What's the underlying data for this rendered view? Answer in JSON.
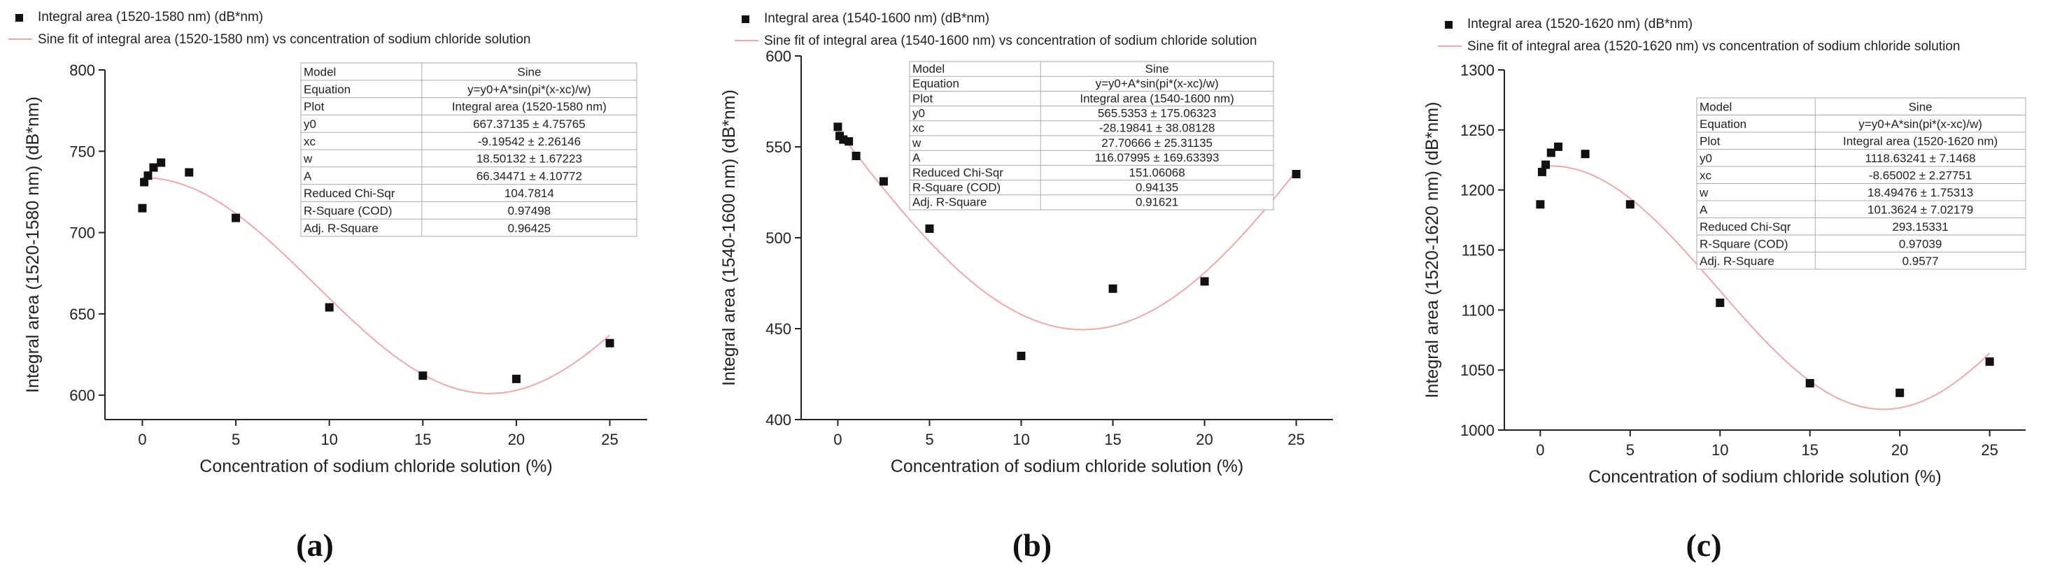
{
  "chart_data": [
    {
      "type": "scatter",
      "caption": "(a)",
      "xlabel": "Concentration of sodium chloride solution (%)",
      "ylabel": "Integral area (1520-1580 nm) (dB*nm)",
      "xlim": [
        -2,
        27
      ],
      "ylim": [
        585,
        800
      ],
      "xticks": [
        0,
        5,
        10,
        15,
        20,
        25
      ],
      "yticks": [
        600,
        650,
        700,
        750,
        800
      ],
      "legend": [
        "Integral area (1520-1580 nm) (dB*nm)",
        "Sine fit of integral area (1520-1580 nm) vs concentration of sodium chloride solution"
      ],
      "points": [
        [
          0,
          715
        ],
        [
          0.1,
          731
        ],
        [
          0.3,
          735
        ],
        [
          0.6,
          740
        ],
        [
          1.0,
          743
        ],
        [
          2.5,
          737
        ],
        [
          5,
          709
        ],
        [
          10,
          654
        ],
        [
          15,
          612
        ],
        [
          20,
          610
        ],
        [
          25,
          632
        ]
      ],
      "fit": {
        "y0": 667.37135,
        "xc": -9.19542,
        "w": 18.50132,
        "A": 66.34471
      },
      "fit_table": [
        [
          "Model",
          "Sine"
        ],
        [
          "Equation",
          "y=y0+A*sin(pi*(x-xc)/w)"
        ],
        [
          "Plot",
          "Integral area (1520-1580 nm)"
        ],
        [
          "y0",
          "667.37135 ± 4.75765"
        ],
        [
          "xc",
          "-9.19542 ± 2.26146"
        ],
        [
          "w",
          "18.50132 ± 1.67223"
        ],
        [
          "A",
          "66.34471 ± 4.10772"
        ],
        [
          "Reduced Chi-Sqr",
          "104.7814"
        ],
        [
          "R-Square (COD)",
          "0.97498"
        ],
        [
          "Adj. R-Square",
          "0.96425"
        ]
      ]
    },
    {
      "type": "scatter",
      "caption": "(b)",
      "xlabel": "Concentration of sodium chloride solution (%)",
      "ylabel": "Integral area (1540-1600 nm) (dB*nm)",
      "xlim": [
        -2,
        27
      ],
      "ylim": [
        400,
        600
      ],
      "xticks": [
        0,
        5,
        10,
        15,
        20,
        25
      ],
      "yticks": [
        400,
        450,
        500,
        550,
        600
      ],
      "legend": [
        "Integral area (1540-1600 nm) (dB*nm)",
        "Sine fit of integral area (1540-1600 nm) vs concentration of sodium chloride solution"
      ],
      "points": [
        [
          0,
          561
        ],
        [
          0.1,
          556
        ],
        [
          0.3,
          554
        ],
        [
          0.6,
          553
        ],
        [
          1.0,
          545
        ],
        [
          2.5,
          531
        ],
        [
          5,
          505
        ],
        [
          10,
          435
        ],
        [
          15,
          472
        ],
        [
          20,
          476
        ],
        [
          25,
          535
        ]
      ],
      "fit": {
        "y0": 565.5353,
        "xc": -28.19841,
        "w": 27.70666,
        "A": 116.07995
      },
      "fit_table": [
        [
          "Model",
          "Sine"
        ],
        [
          "Equation",
          "y=y0+A*sin(pi*(x-xc)/w)"
        ],
        [
          "Plot",
          "Integral area (1540-1600 nm)"
        ],
        [
          "y0",
          "565.5353 ± 175.06323"
        ],
        [
          "xc",
          "-28.19841 ± 38.08128"
        ],
        [
          "w",
          "27.70666 ± 25.31135"
        ],
        [
          "A",
          "116.07995 ± 169.63393"
        ],
        [
          "Reduced Chi-Sqr",
          "151.06068"
        ],
        [
          "R-Square (COD)",
          "0.94135"
        ],
        [
          "Adj. R-Square",
          "0.91621"
        ]
      ]
    },
    {
      "type": "scatter",
      "caption": "(c)",
      "xlabel": "Concentration of sodium chloride solution (%)",
      "ylabel": "Integral area (1520-1620 nm) (dB*nm)",
      "xlim": [
        -2,
        27
      ],
      "ylim": [
        1000,
        1300
      ],
      "xticks": [
        0,
        5,
        10,
        15,
        20,
        25
      ],
      "yticks": [
        1000,
        1050,
        1100,
        1150,
        1200,
        1250,
        1300
      ],
      "legend": [
        "Integral area (1520-1620 nm) (dB*nm)",
        "Sine fit of integral area (1520-1620 nm) vs concentration of sodium chloride solution"
      ],
      "points": [
        [
          0,
          1188
        ],
        [
          0.1,
          1215
        ],
        [
          0.3,
          1221
        ],
        [
          0.6,
          1231
        ],
        [
          1.0,
          1236
        ],
        [
          2.5,
          1230
        ],
        [
          5,
          1188
        ],
        [
          10,
          1106
        ],
        [
          15,
          1039
        ],
        [
          20,
          1031
        ],
        [
          25,
          1057
        ]
      ],
      "fit": {
        "y0": 1118.63241,
        "xc": -8.65002,
        "w": 18.49476,
        "A": 101.3624
      },
      "fit_table": [
        [
          "Model",
          "Sine"
        ],
        [
          "Equation",
          "y=y0+A*sin(pi*(x-xc)/w)"
        ],
        [
          "Plot",
          "Integral area (1520-1620 nm)"
        ],
        [
          "y0",
          "1118.63241 ± 7.1468"
        ],
        [
          "xc",
          "-8.65002 ± 2.27751"
        ],
        [
          "w",
          "18.49476 ± 1.75313"
        ],
        [
          "A",
          "101.3624 ± 7.02179"
        ],
        [
          "Reduced Chi-Sqr",
          "293.15331"
        ],
        [
          "R-Square (COD)",
          "0.97039"
        ],
        [
          "Adj. R-Square",
          "0.9577"
        ]
      ]
    }
  ],
  "colors": {
    "points": "#111111",
    "fit_line": "#f4a6a6",
    "axis": "#222222",
    "table_border": "#aaaaaa"
  }
}
